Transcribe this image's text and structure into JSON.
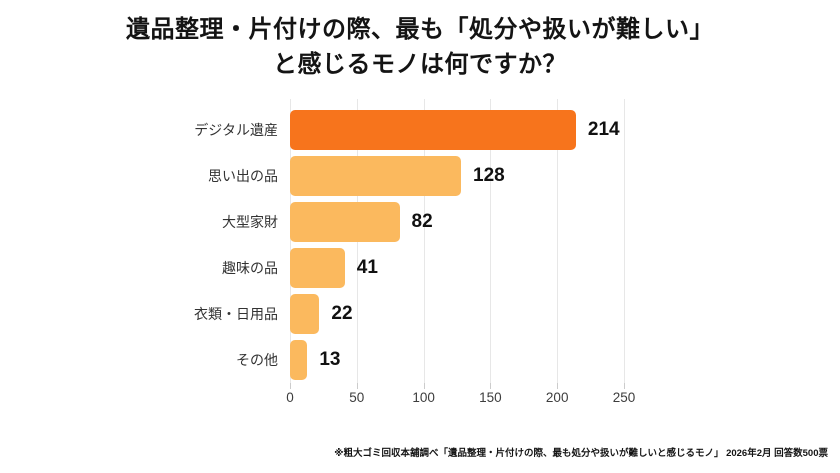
{
  "title": {
    "line1": "遺品整理・片付けの際、最も「処分や扱いが難しい」",
    "line2": "と感じるモノは何ですか？"
  },
  "chart_data": {
    "type": "bar",
    "orientation": "horizontal",
    "title": "遺品整理・片付けの際、最も「処分や扱いが難しい」と感じるモノは何ですか？",
    "categories": [
      "デジタル遺産",
      "思い出の品",
      "大型家財",
      "趣味の品",
      "衣類・日用品",
      "その他"
    ],
    "values": [
      214,
      128,
      82,
      41,
      22,
      13
    ],
    "bar_colors": [
      "#F7741C",
      "#FBB95E",
      "#FBB95E",
      "#FBB95E",
      "#FBB95E",
      "#FBB95E"
    ],
    "xlim": [
      0,
      250
    ],
    "xticks": [
      0,
      50,
      100,
      150,
      200,
      250
    ],
    "grid": true,
    "legend": false,
    "value_labels": true
  },
  "footnote": "※粗大ゴミ回収本舗調べ「遺品整理・片付けの際、最も処分や扱いが難しいと感じるモノ」 2026年2月 回答数500票",
  "colors": {
    "highlight_bar": "#F7741C",
    "default_bar": "#FBB95E",
    "gridline": "#E7E7E7",
    "tick": "#CCCCCC",
    "title_text": "#141414",
    "label_text": "#333333",
    "value_text": "#111111",
    "tick_text": "#3D3D3D",
    "background": "#FFFFFF"
  }
}
